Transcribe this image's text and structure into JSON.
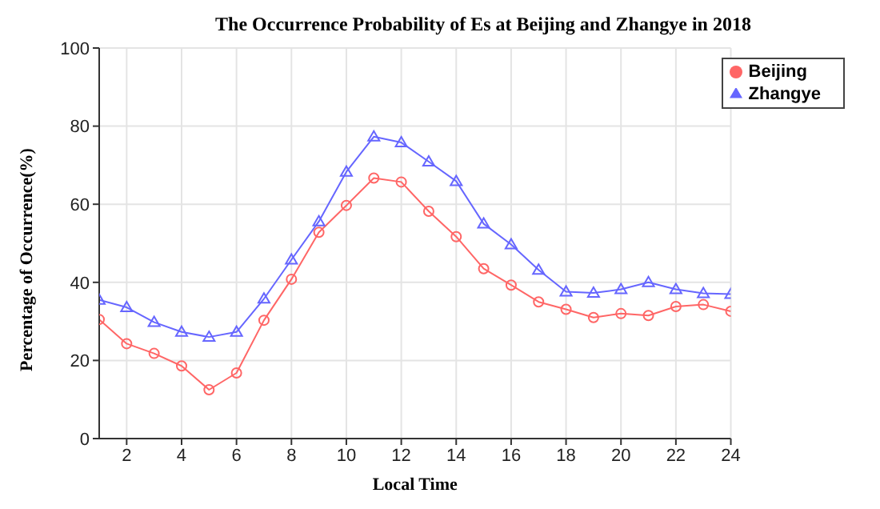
{
  "chart_data": {
    "type": "line",
    "title": "The Occurrence Probability of Es at Beijing and Zhangye in 2018",
    "xlabel": "Local Time",
    "ylabel": "Percentage of Occurrence(%)",
    "x": [
      1,
      2,
      3,
      4,
      5,
      6,
      7,
      8,
      9,
      10,
      11,
      12,
      13,
      14,
      15,
      16,
      17,
      18,
      19,
      20,
      21,
      22,
      23,
      24
    ],
    "series": [
      {
        "name": "Beijing",
        "color": "#ff6666",
        "marker": "circle",
        "values": [
          30.5,
          24.3,
          21.8,
          18.6,
          12.5,
          16.8,
          30.3,
          40.8,
          52.8,
          59.7,
          66.7,
          65.7,
          58.2,
          51.7,
          43.5,
          39.3,
          35,
          33.1,
          31,
          32,
          31.5,
          33.8,
          34.3,
          32.6
        ]
      },
      {
        "name": "Zhangye",
        "color": "#6666ff",
        "marker": "triangle",
        "values": [
          35.5,
          33.6,
          29.8,
          27.3,
          26,
          27.3,
          35.8,
          45.8,
          55.6,
          68.3,
          77.3,
          75.8,
          70.9,
          65.9,
          55,
          49.7,
          43.2,
          37.6,
          37.3,
          38.2,
          40,
          38.2,
          37.2,
          37
        ]
      }
    ],
    "xlim": [
      1,
      24
    ],
    "xticks": [
      2,
      4,
      6,
      8,
      10,
      12,
      14,
      16,
      18,
      20,
      22,
      24
    ],
    "ylim": [
      0,
      100
    ],
    "yticks": [
      0,
      20,
      40,
      60,
      80,
      100
    ],
    "grid": true,
    "legend": "top right",
    "line_style": "solid"
  }
}
